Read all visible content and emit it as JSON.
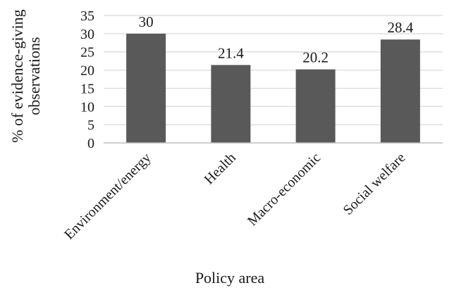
{
  "chart_data": {
    "type": "bar",
    "title": "",
    "xlabel": "Policy area",
    "ylabel_lines": [
      "% of evidence-giving",
      "observations"
    ],
    "categories": [
      "Environment/energy",
      "Health",
      "Macro-economic",
      "Social welfare"
    ],
    "values": [
      30,
      21.4,
      20.2,
      28.4
    ],
    "data_labels": [
      "30",
      "21.4",
      "20.2",
      "28.4"
    ],
    "ylim": [
      0,
      35
    ],
    "yticks": [
      0,
      5,
      10,
      15,
      20,
      25,
      30,
      35
    ],
    "grid": true,
    "legend": "none",
    "colors": {
      "bar": "#595959",
      "grid": "#d9d9d9",
      "axis": "#bfbfbf"
    }
  }
}
